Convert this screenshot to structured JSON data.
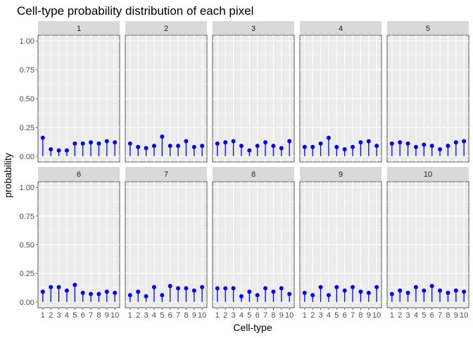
{
  "chart_data": {
    "type": "lollipop-facet",
    "title": "Cell-type probability distribution of each pixel",
    "xlabel": "Cell-type",
    "ylabel": "probability",
    "ylim": [
      0,
      1
    ],
    "y_ticks": [
      "0.00",
      "0.25",
      "0.50",
      "0.75",
      "1.00"
    ],
    "y_tick_values": [
      0,
      0.25,
      0.5,
      0.75,
      1
    ],
    "x_ticks": [
      "1",
      "2",
      "3",
      "4",
      "5",
      "6",
      "7",
      "8",
      "9",
      "10"
    ],
    "colors": {
      "point": "#0000ff",
      "panel_bg": "#ebebeb",
      "grid_major": "#ffffff",
      "strip_bg": "#d9d9d9"
    },
    "facets": [
      {
        "label": "1",
        "values": [
          0.16,
          0.06,
          0.05,
          0.05,
          0.11,
          0.11,
          0.12,
          0.11,
          0.13,
          0.12
        ]
      },
      {
        "label": "2",
        "values": [
          0.11,
          0.08,
          0.07,
          0.09,
          0.17,
          0.09,
          0.09,
          0.13,
          0.08,
          0.09
        ]
      },
      {
        "label": "3",
        "values": [
          0.11,
          0.12,
          0.13,
          0.09,
          0.05,
          0.09,
          0.12,
          0.09,
          0.07,
          0.13
        ]
      },
      {
        "label": "4",
        "values": [
          0.08,
          0.08,
          0.11,
          0.16,
          0.08,
          0.06,
          0.08,
          0.12,
          0.13,
          0.09
        ]
      },
      {
        "label": "5",
        "values": [
          0.11,
          0.12,
          0.11,
          0.08,
          0.1,
          0.09,
          0.06,
          0.09,
          0.12,
          0.13
        ]
      },
      {
        "label": "6",
        "values": [
          0.09,
          0.13,
          0.13,
          0.1,
          0.15,
          0.08,
          0.07,
          0.07,
          0.09,
          0.08
        ]
      },
      {
        "label": "7",
        "values": [
          0.06,
          0.09,
          0.05,
          0.13,
          0.06,
          0.14,
          0.12,
          0.12,
          0.1,
          0.13
        ]
      },
      {
        "label": "8",
        "values": [
          0.12,
          0.12,
          0.12,
          0.05,
          0.09,
          0.06,
          0.12,
          0.09,
          0.12,
          0.07
        ]
      },
      {
        "label": "9",
        "values": [
          0.08,
          0.06,
          0.13,
          0.06,
          0.13,
          0.1,
          0.13,
          0.09,
          0.08,
          0.13
        ]
      },
      {
        "label": "10",
        "values": [
          0.07,
          0.1,
          0.08,
          0.13,
          0.1,
          0.14,
          0.1,
          0.08,
          0.1,
          0.09
        ]
      }
    ]
  }
}
